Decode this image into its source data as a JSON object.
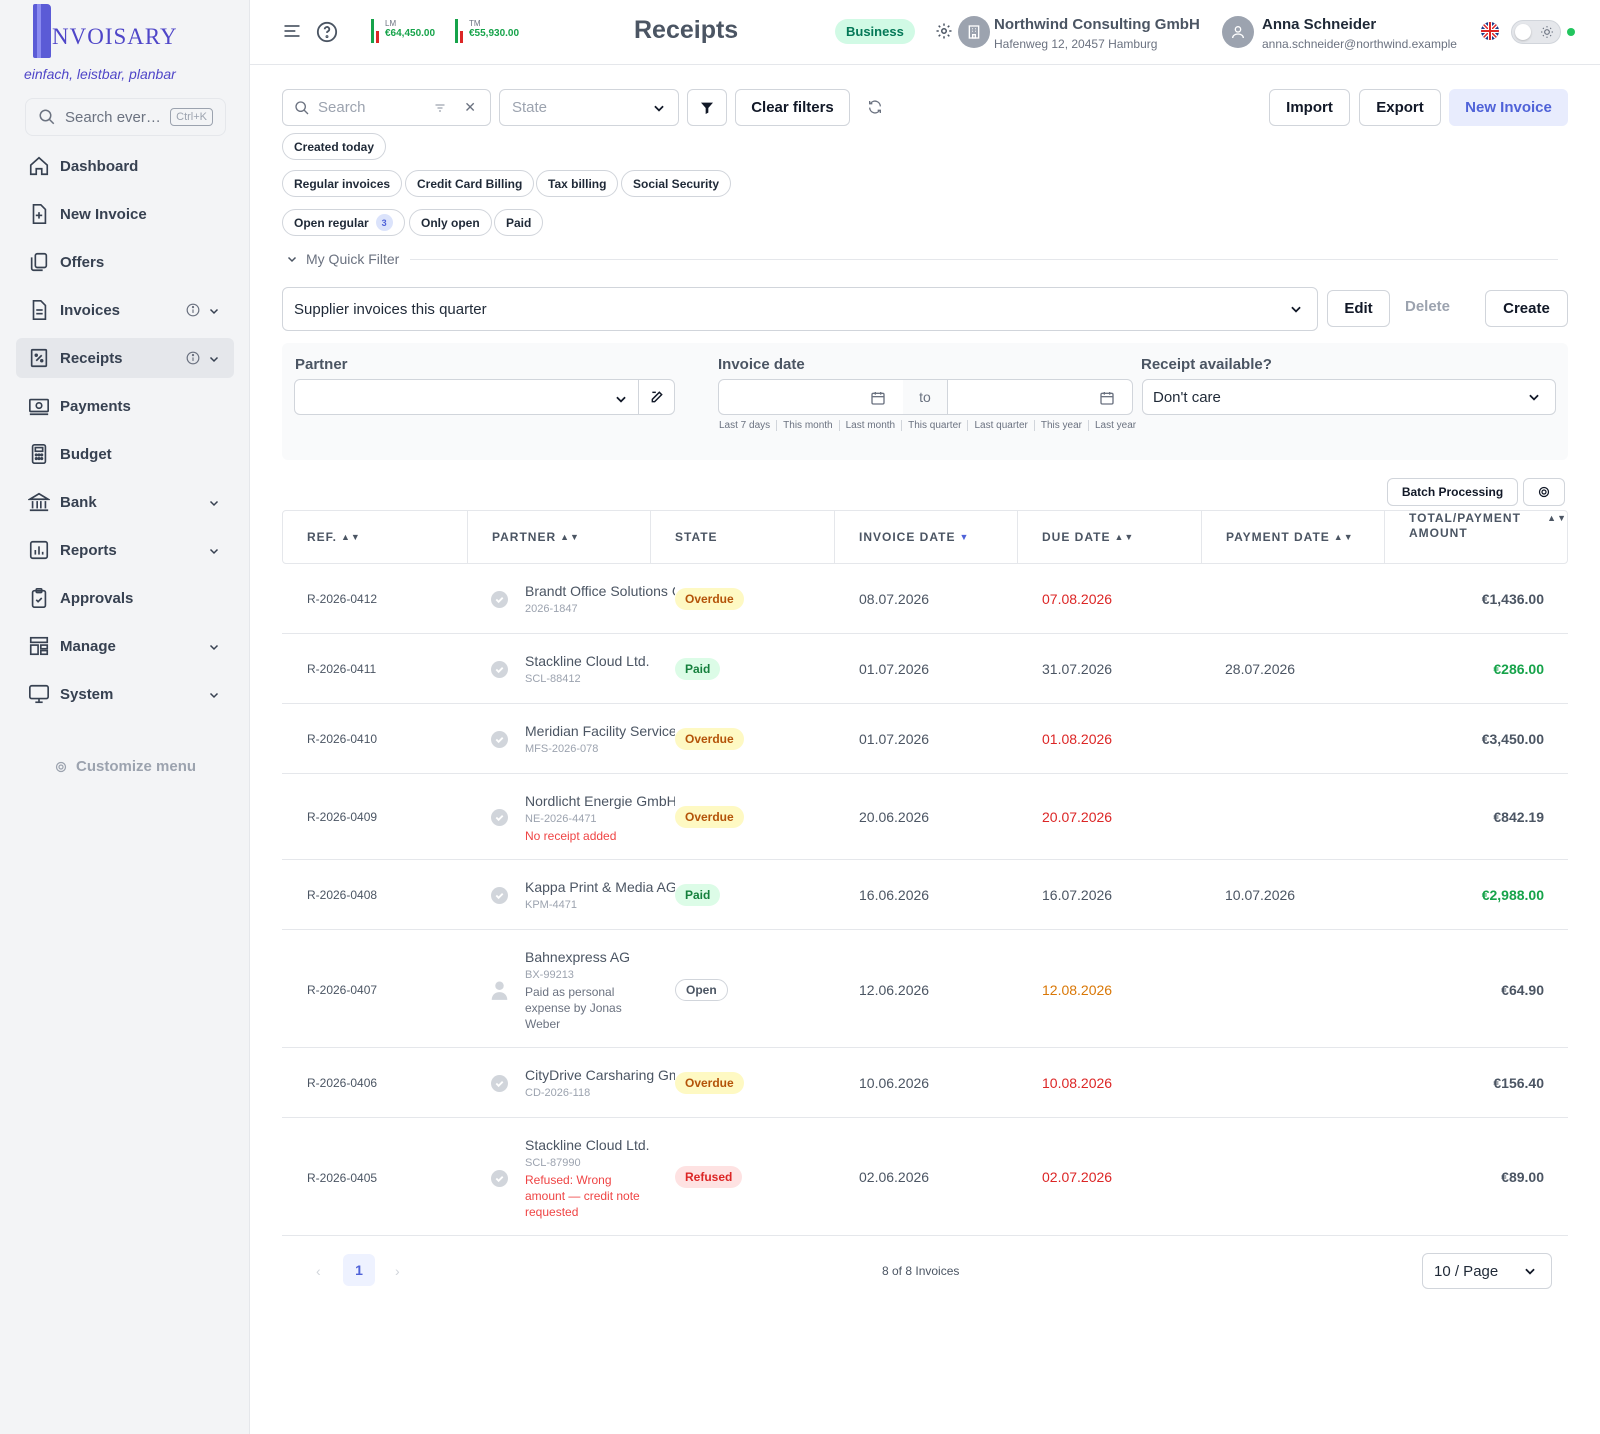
{
  "app": {
    "logo_text": "NVOISARY",
    "tagline": "einfach, leistbar, planbar",
    "search_placeholder": "Search ever…",
    "search_shortcut": "Ctrl+K"
  },
  "sidebar": {
    "items": [
      {
        "label": "Dashboard",
        "icon": "home-icon"
      },
      {
        "label": "New Invoice",
        "icon": "file-plus-icon"
      },
      {
        "label": "Offers",
        "icon": "copy-icon"
      },
      {
        "label": "Invoices",
        "icon": "file-icon"
      },
      {
        "label": "Receipts",
        "icon": "receipt-icon"
      },
      {
        "label": "Payments",
        "icon": "cash-icon"
      },
      {
        "label": "Budget",
        "icon": "calculator-icon"
      },
      {
        "label": "Bank",
        "icon": "bank-icon"
      },
      {
        "label": "Reports",
        "icon": "chart-icon"
      },
      {
        "label": "Approvals",
        "icon": "clipboard-check-icon"
      },
      {
        "label": "Manage",
        "icon": "layout-icon"
      },
      {
        "label": "System",
        "icon": "monitor-icon"
      }
    ],
    "customize_label": "Customize menu"
  },
  "header": {
    "kpi_lm_label": "LM",
    "kpi_lm_value": "€64,450.00",
    "kpi_tm_label": "TM",
    "kpi_tm_value": "€55,930.00",
    "title": "Receipts",
    "plan_badge": "Business",
    "company_name": "Northwind Consulting GmbH",
    "company_address": "Hafenweg 12, 20457 Hamburg",
    "user_name": "Anna Schneider",
    "user_email": "anna.schneider@northwind.example",
    "colors": {
      "accent": "#4f62d8",
      "success": "#16a34a",
      "danger": "#dc2626"
    }
  },
  "toolbar": {
    "search_placeholder": "Search",
    "state_placeholder": "State",
    "clear_filters": "Clear filters",
    "import": "Import",
    "export": "Export",
    "new_invoice": "New Invoice"
  },
  "chips": {
    "created_today": "Created today",
    "regular": "Regular invoices",
    "credit_card": "Credit Card Billing",
    "tax": "Tax billing",
    "social": "Social Security",
    "open_regular": "Open regular",
    "open_regular_count": "3",
    "only_open": "Only open",
    "paid": "Paid"
  },
  "quick_filter": {
    "label": "My Quick Filter",
    "selected": "Supplier invoices this quarter",
    "edit": "Edit",
    "delete": "Delete",
    "create": "Create"
  },
  "filters": {
    "partner_label": "Partner",
    "invoice_date_label": "Invoice date",
    "to_label": "to",
    "receipt_label": "Receipt available?",
    "receipt_value": "Don't care",
    "presets": [
      "Last 7 days",
      "This month",
      "Last month",
      "This quarter",
      "Last quarter",
      "This year",
      "Last year"
    ]
  },
  "table": {
    "batch_processing": "Batch Processing",
    "columns": [
      "REF.",
      "PARTNER",
      "STATE",
      "INVOICE DATE",
      "DUE DATE",
      "PAYMENT DATE",
      "TOTAL/PAYMENT AMOUNT"
    ],
    "rows": [
      {
        "ref": "R-2026-0412",
        "partner": "Brandt Office Solutions GmbH",
        "sub": "2026-1847",
        "note": "",
        "state": "Overdue",
        "invoice_date": "08.07.2026",
        "due_date": "07.08.2026",
        "payment_date": "",
        "amount": "€1,436.00"
      },
      {
        "ref": "R-2026-0411",
        "partner": "Stackline Cloud Ltd.",
        "sub": "SCL-88412",
        "note": "",
        "state": "Paid",
        "invoice_date": "01.07.2026",
        "due_date": "31.07.2026",
        "payment_date": "28.07.2026",
        "amount": "€286.00"
      },
      {
        "ref": "R-2026-0410",
        "partner": "Meridian Facility Services GmbH",
        "sub": "MFS-2026-078",
        "note": "",
        "state": "Overdue",
        "invoice_date": "01.07.2026",
        "due_date": "01.08.2026",
        "payment_date": "",
        "amount": "€3,450.00"
      },
      {
        "ref": "R-2026-0409",
        "partner": "Nordlicht Energie GmbH",
        "sub": "NE-2026-4471",
        "note": "No receipt added",
        "state": "Overdue",
        "invoice_date": "20.06.2026",
        "due_date": "20.07.2026",
        "payment_date": "",
        "amount": "€842.19"
      },
      {
        "ref": "R-2026-0408",
        "partner": "Kappa Print & Media AG",
        "sub": "KPM-4471",
        "note": "",
        "state": "Paid",
        "invoice_date": "16.06.2026",
        "due_date": "16.07.2026",
        "payment_date": "10.07.2026",
        "amount": "€2,988.00"
      },
      {
        "ref": "R-2026-0407",
        "partner": "Bahnexpress AG",
        "sub": "BX-99213",
        "note": "Paid as personal expense by Jonas Weber",
        "state": "Open",
        "invoice_date": "12.06.2026",
        "due_date": "12.08.2026",
        "payment_date": "",
        "amount": "€64.90"
      },
      {
        "ref": "R-2026-0406",
        "partner": "CityDrive Carsharing GmbH",
        "sub": "CD-2026-118",
        "note": "",
        "state": "Overdue",
        "invoice_date": "10.06.2026",
        "due_date": "10.08.2026",
        "payment_date": "",
        "amount": "€156.40"
      },
      {
        "ref": "R-2026-0405",
        "partner": "Stackline Cloud Ltd.",
        "sub": "SCL-87990",
        "note": "Refused: Wrong amount — credit note requested",
        "state": "Refused",
        "invoice_date": "02.06.2026",
        "due_date": "02.07.2026",
        "payment_date": "",
        "amount": "€89.00"
      }
    ]
  },
  "pagination": {
    "current_page": "1",
    "count_text": "8 of 8 Invoices",
    "page_size": "10 / Page"
  }
}
